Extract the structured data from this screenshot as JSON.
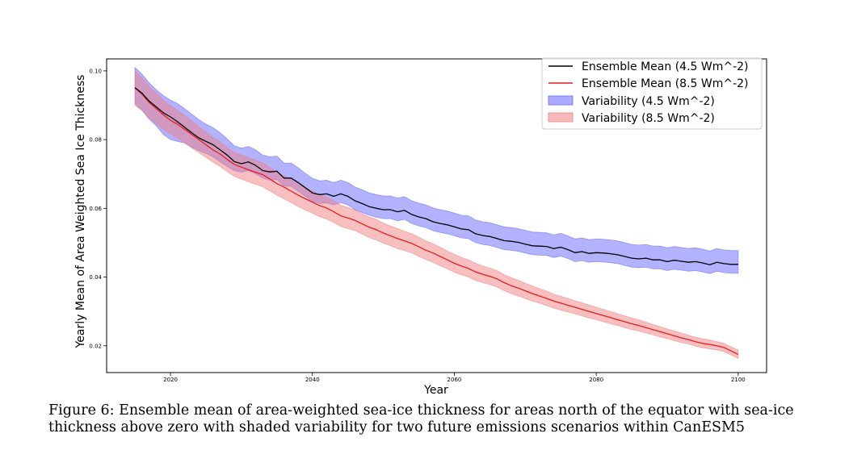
{
  "chart_data": {
    "type": "line",
    "xlabel": "Year",
    "ylabel": "Yearly Mean of Area Weighted Sea Ice Thickness",
    "xlim": [
      2011,
      2104
    ],
    "ylim": [
      0.0122,
      0.1035
    ],
    "xticks": [
      2020,
      2040,
      2060,
      2080,
      2100
    ],
    "yticks": [
      0.02,
      0.04,
      0.06,
      0.08,
      0.1
    ],
    "xtick_labels": [
      "2020",
      "2040",
      "2060",
      "2080",
      "2100"
    ],
    "ytick_labels": [
      "0.02",
      "0.04",
      "0.06",
      "0.08",
      "0.10"
    ],
    "grid": false,
    "legend_position": "top-right",
    "legend": [
      {
        "label": "Ensemble Mean (4.5 Wm^-2)",
        "kind": "line",
        "color": "#000000"
      },
      {
        "label": "Ensemble Mean (8.5 Wm^-2)",
        "kind": "line",
        "color": "#e02020"
      },
      {
        "label": "Variability (4.5 Wm^-2)",
        "kind": "band",
        "color": "#6666ff"
      },
      {
        "label": "Variability (8.5 Wm^-2)",
        "kind": "band",
        "color": "#f08080"
      }
    ],
    "series": [
      {
        "name": "Ensemble Mean (4.5 Wm^-2)",
        "color": "#000000",
        "band_color": "#6666ff",
        "x": [
          2015,
          2016,
          2017,
          2018,
          2019,
          2020,
          2021,
          2022,
          2023,
          2024,
          2025,
          2026,
          2027,
          2028,
          2029,
          2030,
          2031,
          2032,
          2033,
          2034,
          2035,
          2036,
          2037,
          2038,
          2039,
          2040,
          2041,
          2042,
          2043,
          2044,
          2045,
          2046,
          2047,
          2048,
          2049,
          2050,
          2051,
          2052,
          2053,
          2054,
          2055,
          2056,
          2057,
          2058,
          2059,
          2060,
          2061,
          2062,
          2063,
          2064,
          2065,
          2066,
          2067,
          2068,
          2069,
          2070,
          2071,
          2072,
          2073,
          2074,
          2075,
          2076,
          2077,
          2078,
          2079,
          2080,
          2081,
          2082,
          2083,
          2084,
          2085,
          2086,
          2087,
          2088,
          2089,
          2090,
          2091,
          2092,
          2093,
          2094,
          2095,
          2096,
          2097,
          2098,
          2099,
          2100
        ],
        "mean": [
          0.0951,
          0.0935,
          0.0912,
          0.0895,
          0.0878,
          0.0866,
          0.0852,
          0.0836,
          0.082,
          0.0805,
          0.0795,
          0.0785,
          0.077,
          0.0755,
          0.0736,
          0.073,
          0.0735,
          0.0725,
          0.071,
          0.0706,
          0.0708,
          0.0688,
          0.0688,
          0.0675,
          0.066,
          0.0645,
          0.064,
          0.0642,
          0.0635,
          0.0642,
          0.0635,
          0.0622,
          0.0614,
          0.0605,
          0.06,
          0.0596,
          0.0596,
          0.059,
          0.0594,
          0.0582,
          0.0575,
          0.057,
          0.0561,
          0.0556,
          0.0552,
          0.0546,
          0.054,
          0.0538,
          0.0526,
          0.0521,
          0.0518,
          0.0512,
          0.0506,
          0.0504,
          0.0501,
          0.0496,
          0.0491,
          0.049,
          0.0489,
          0.0483,
          0.0487,
          0.048,
          0.0471,
          0.0474,
          0.0469,
          0.0471,
          0.047,
          0.0468,
          0.0465,
          0.046,
          0.0455,
          0.0453,
          0.0455,
          0.045,
          0.045,
          0.0445,
          0.0449,
          0.0446,
          0.0443,
          0.0445,
          0.0441,
          0.0436,
          0.0443,
          0.0439,
          0.0437,
          0.0437
        ],
        "lower": [
          0.0905,
          0.0885,
          0.086,
          0.084,
          0.0815,
          0.08,
          0.0795,
          0.079,
          0.0778,
          0.0768,
          0.076,
          0.075,
          0.0735,
          0.0722,
          0.071,
          0.0705,
          0.071,
          0.07,
          0.0688,
          0.0682,
          0.0684,
          0.0665,
          0.0664,
          0.065,
          0.0635,
          0.062,
          0.0614,
          0.0616,
          0.061,
          0.0617,
          0.061,
          0.0596,
          0.0588,
          0.058,
          0.0574,
          0.057,
          0.057,
          0.0564,
          0.0568,
          0.0556,
          0.0549,
          0.0544,
          0.0535,
          0.053,
          0.0526,
          0.052,
          0.0514,
          0.0512,
          0.05,
          0.0495,
          0.0492,
          0.0486,
          0.048,
          0.0478,
          0.0475,
          0.047,
          0.0465,
          0.0464,
          0.0463,
          0.0457,
          0.0461,
          0.0454,
          0.0445,
          0.0448,
          0.0443,
          0.0445,
          0.0444,
          0.0442,
          0.0439,
          0.0434,
          0.0429,
          0.0427,
          0.0429,
          0.0424,
          0.0424,
          0.0419,
          0.0423,
          0.042,
          0.0417,
          0.0419,
          0.0415,
          0.041,
          0.0417,
          0.0413,
          0.0411,
          0.0411
        ],
        "upper": [
          0.101,
          0.099,
          0.0965,
          0.0945,
          0.0928,
          0.0915,
          0.0905,
          0.089,
          0.0874,
          0.0858,
          0.0845,
          0.0835,
          0.082,
          0.0802,
          0.0782,
          0.0775,
          0.078,
          0.077,
          0.0755,
          0.075,
          0.0752,
          0.0732,
          0.0732,
          0.0718,
          0.0702,
          0.0687,
          0.068,
          0.0682,
          0.0675,
          0.0682,
          0.0675,
          0.0662,
          0.0654,
          0.0645,
          0.064,
          0.0636,
          0.0636,
          0.063,
          0.0634,
          0.0622,
          0.0615,
          0.061,
          0.0601,
          0.0596,
          0.0592,
          0.0586,
          0.058,
          0.0578,
          0.0566,
          0.0561,
          0.0558,
          0.0552,
          0.0546,
          0.0544,
          0.0541,
          0.0536,
          0.0531,
          0.053,
          0.0529,
          0.0523,
          0.0527,
          0.052,
          0.0511,
          0.0514,
          0.0509,
          0.0511,
          0.051,
          0.0508,
          0.0505,
          0.05,
          0.0495,
          0.0493,
          0.0495,
          0.049,
          0.049,
          0.0485,
          0.0489,
          0.0486,
          0.0483,
          0.0485,
          0.0481,
          0.0476,
          0.0483,
          0.0479,
          0.0477,
          0.0477
        ]
      },
      {
        "name": "Ensemble Mean (8.5 Wm^-2)",
        "color": "#e02020",
        "band_color": "#f08080",
        "x": [
          2015,
          2016,
          2017,
          2018,
          2019,
          2020,
          2021,
          2022,
          2023,
          2024,
          2025,
          2026,
          2027,
          2028,
          2029,
          2030,
          2031,
          2032,
          2033,
          2034,
          2035,
          2036,
          2037,
          2038,
          2039,
          2040,
          2041,
          2042,
          2043,
          2044,
          2045,
          2046,
          2047,
          2048,
          2049,
          2050,
          2051,
          2052,
          2053,
          2054,
          2055,
          2056,
          2057,
          2058,
          2059,
          2060,
          2061,
          2062,
          2063,
          2064,
          2065,
          2066,
          2067,
          2068,
          2069,
          2070,
          2071,
          2072,
          2073,
          2074,
          2075,
          2076,
          2077,
          2078,
          2079,
          2080,
          2081,
          2082,
          2083,
          2084,
          2085,
          2086,
          2087,
          2088,
          2089,
          2090,
          2091,
          2092,
          2093,
          2094,
          2095,
          2096,
          2097,
          2098,
          2099,
          2100
        ],
        "mean": [
          0.0951,
          0.0932,
          0.0908,
          0.089,
          0.0872,
          0.0856,
          0.0845,
          0.083,
          0.0815,
          0.08,
          0.0785,
          0.077,
          0.0758,
          0.0742,
          0.0728,
          0.072,
          0.0712,
          0.0705,
          0.0698,
          0.0685,
          0.0672,
          0.0662,
          0.065,
          0.0638,
          0.0628,
          0.0618,
          0.0608,
          0.0601,
          0.059,
          0.0578,
          0.0572,
          0.0565,
          0.0555,
          0.0545,
          0.0538,
          0.0528,
          0.052,
          0.0512,
          0.0505,
          0.0498,
          0.0488,
          0.0478,
          0.047,
          0.046,
          0.045,
          0.044,
          0.0432,
          0.0425,
          0.0415,
          0.0408,
          0.0402,
          0.0395,
          0.0384,
          0.0375,
          0.0368,
          0.036,
          0.0352,
          0.0345,
          0.0338,
          0.033,
          0.0324,
          0.0318,
          0.0312,
          0.0306,
          0.03,
          0.0294,
          0.0288,
          0.0282,
          0.0276,
          0.027,
          0.0264,
          0.0259,
          0.0253,
          0.0247,
          0.0241,
          0.0235,
          0.0229,
          0.0223,
          0.0218,
          0.0212,
          0.0207,
          0.0204,
          0.02,
          0.0195,
          0.0185,
          0.0175
        ],
        "lower": [
          0.09,
          0.0885,
          0.0862,
          0.0846,
          0.083,
          0.0815,
          0.0805,
          0.0791,
          0.0776,
          0.0762,
          0.0748,
          0.0734,
          0.0722,
          0.0707,
          0.0693,
          0.0685,
          0.0677,
          0.067,
          0.0663,
          0.0651,
          0.0638,
          0.0628,
          0.0617,
          0.0605,
          0.0595,
          0.0586,
          0.0576,
          0.0569,
          0.0559,
          0.0547,
          0.0541,
          0.0535,
          0.0525,
          0.0515,
          0.0508,
          0.0499,
          0.0491,
          0.0483,
          0.0477,
          0.047,
          0.046,
          0.0451,
          0.0443,
          0.0433,
          0.0424,
          0.0414,
          0.0407,
          0.04,
          0.039,
          0.0384,
          0.0378,
          0.0371,
          0.0361,
          0.0352,
          0.0345,
          0.0338,
          0.033,
          0.0324,
          0.0317,
          0.031,
          0.0304,
          0.0298,
          0.0293,
          0.0287,
          0.0281,
          0.0276,
          0.027,
          0.0264,
          0.0259,
          0.0253,
          0.0247,
          0.0243,
          0.0237,
          0.0232,
          0.0226,
          0.0221,
          0.0215,
          0.0209,
          0.0205,
          0.0199,
          0.0194,
          0.0191,
          0.0188,
          0.0183,
          0.0173,
          0.0163
        ],
        "upper": [
          0.1,
          0.098,
          0.0955,
          0.0935,
          0.0915,
          0.0898,
          0.0886,
          0.087,
          0.0854,
          0.0838,
          0.0822,
          0.0806,
          0.0794,
          0.0777,
          0.0763,
          0.0755,
          0.0747,
          0.074,
          0.0733,
          0.0719,
          0.0706,
          0.0695,
          0.0683,
          0.0671,
          0.0661,
          0.065,
          0.064,
          0.0633,
          0.0621,
          0.0609,
          0.0603,
          0.0595,
          0.0585,
          0.0575,
          0.0568,
          0.0557,
          0.0549,
          0.0541,
          0.0533,
          0.0526,
          0.0516,
          0.0505,
          0.0497,
          0.0487,
          0.0476,
          0.0466,
          0.0457,
          0.045,
          0.044,
          0.0432,
          0.0426,
          0.0419,
          0.0407,
          0.0398,
          0.0391,
          0.0382,
          0.0374,
          0.0366,
          0.0359,
          0.035,
          0.0344,
          0.0338,
          0.0331,
          0.0325,
          0.0319,
          0.0312,
          0.0306,
          0.03,
          0.0293,
          0.0287,
          0.0281,
          0.0275,
          0.0269,
          0.0262,
          0.0256,
          0.0249,
          0.0243,
          0.0237,
          0.0231,
          0.0225,
          0.022,
          0.0217,
          0.0212,
          0.0207,
          0.0197,
          0.0187
        ]
      }
    ]
  },
  "caption": {
    "line1": "Figure 6: Ensemble mean of area-weighted sea-ice thickness for areas north of the equator with sea-ice",
    "line2": "thickness above zero with shaded variability for two future emissions scenarios within CanESM5"
  }
}
